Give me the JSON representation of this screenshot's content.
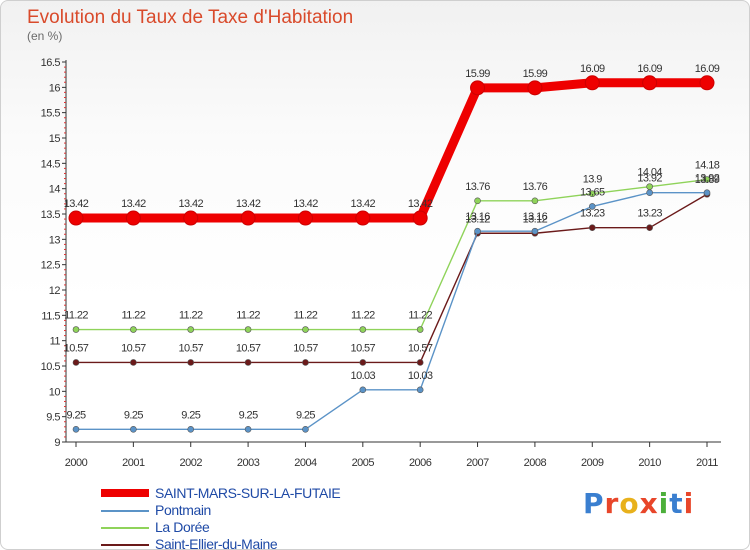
{
  "title": "Evolution du Taux de Taxe d'Habitation",
  "subtitle": "(en %)",
  "logo": {
    "text": "Proxiti",
    "colors": [
      "#3a7fd0",
      "#e8462a",
      "#e8b11c",
      "#e8462a",
      "#4caf3a",
      "#3a7fd0",
      "#e8462a"
    ]
  },
  "chart_data": {
    "type": "line",
    "x": [
      "2000",
      "2001",
      "2002",
      "2003",
      "2004",
      "2005",
      "2006",
      "2007",
      "2008",
      "2009",
      "2010",
      "2011"
    ],
    "ylim": [
      9,
      16.5
    ],
    "yticks": [
      "9",
      "9.5",
      "10",
      "10.5",
      "11",
      "11.5",
      "12",
      "12.5",
      "13",
      "13.5",
      "14",
      "14.5",
      "15",
      "15.5",
      "16",
      "16.5"
    ],
    "grid": false,
    "legend_position": "bottom-left",
    "series": [
      {
        "name": "SAINT-MARS-SUR-LA-FUTAIE",
        "color": "#ee0000",
        "values": [
          13.42,
          13.42,
          13.42,
          13.42,
          13.42,
          13.42,
          13.42,
          15.99,
          15.99,
          16.09,
          16.09,
          16.09
        ],
        "labels": [
          "13.42",
          "13.42",
          "13.42",
          "13.42",
          "13.42",
          "13.42",
          "13.42",
          "15.99",
          "15.99",
          "16.09",
          "16.09",
          "16.09"
        ]
      },
      {
        "name": "Pontmain",
        "color": "#5b93c7",
        "values": [
          9.25,
          9.25,
          9.25,
          9.25,
          9.25,
          10.03,
          10.03,
          13.16,
          13.16,
          13.65,
          13.92,
          13.92
        ],
        "labels": [
          "9.25",
          "9.25",
          "9.25",
          "9.25",
          "9.25",
          "10.03",
          "10.03",
          "13.16",
          "13.16",
          "13.65",
          "13.92",
          "13.92"
        ]
      },
      {
        "name": "La Dorée",
        "color": "#8fd35a",
        "values": [
          11.22,
          11.22,
          11.22,
          11.22,
          11.22,
          11.22,
          11.22,
          13.76,
          13.76,
          13.9,
          14.04,
          14.18
        ],
        "labels": [
          "11.22",
          "11.22",
          "11.22",
          "11.22",
          "11.22",
          "11.22",
          "11.22",
          "13.76",
          "13.76",
          "13.9",
          "14.04",
          "14.18"
        ]
      },
      {
        "name": "Saint-Ellier-du-Maine",
        "color": "#6b1a1a",
        "values": [
          10.57,
          10.57,
          10.57,
          10.57,
          10.57,
          10.57,
          10.57,
          13.12,
          13.12,
          13.23,
          13.23,
          13.89
        ],
        "labels": [
          "10.57",
          "10.57",
          "10.57",
          "10.57",
          "10.57",
          "10.57",
          "10.57",
          "13.12",
          "13.12",
          "13.23",
          "13.23",
          "13.89"
        ]
      }
    ]
  }
}
